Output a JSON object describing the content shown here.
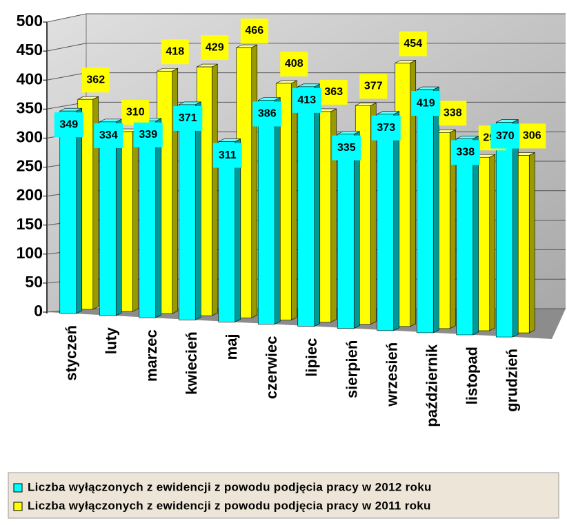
{
  "chart_data": {
    "type": "bar3d",
    "categories": [
      "styczeń",
      "luty",
      "marzec",
      "kwiecień",
      "maj",
      "czerwiec",
      "lipiec",
      "sierpień",
      "wrzesień",
      "październik",
      "listopad",
      "grudzień"
    ],
    "series": [
      {
        "name": "Liczba wyłączonych z ewidencji z powodu podjęcia pracy w 2012 roku",
        "color": "#00ffff",
        "values": [
          349,
          334,
          339,
          371,
          311,
          386,
          413,
          335,
          373,
          419,
          338,
          370
        ]
      },
      {
        "name": "Liczba wyłączonych z ewidencji z powodu podjęcia pracy w 2011 roku",
        "color": "#ffff00",
        "values": [
          362,
          310,
          418,
          429,
          466,
          408,
          363,
          377,
          454,
          338,
          299,
          306
        ]
      }
    ],
    "ylim": [
      0,
      500
    ],
    "yticks": [
      0,
      50,
      100,
      150,
      200,
      250,
      300,
      350,
      400,
      450,
      500
    ],
    "grid": true
  }
}
